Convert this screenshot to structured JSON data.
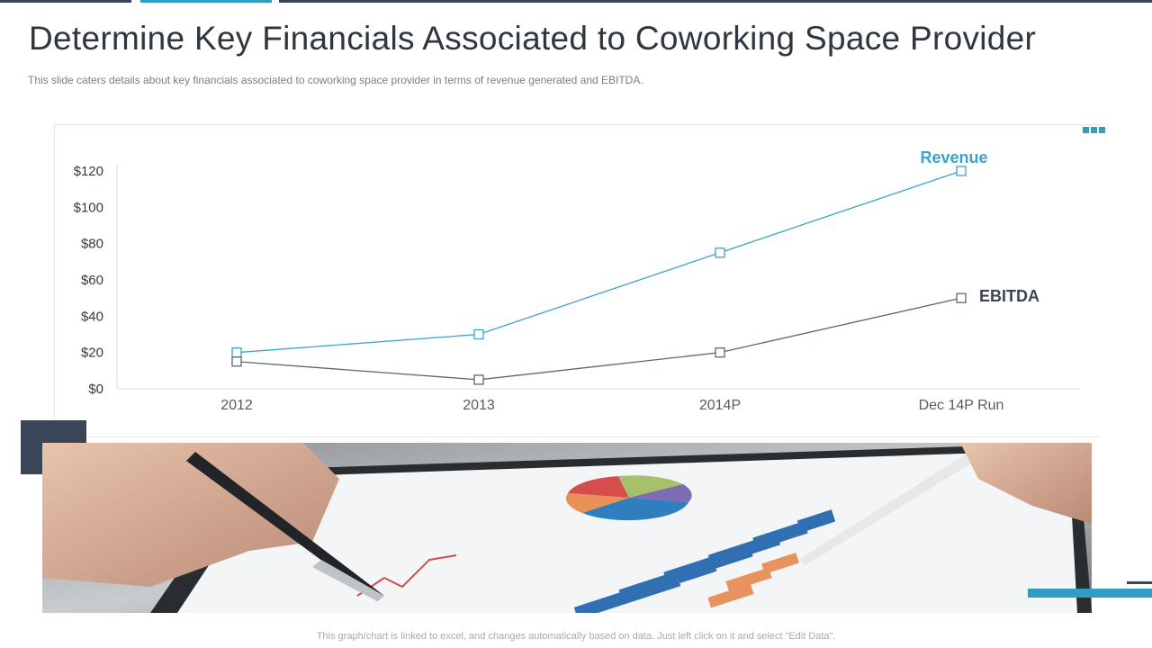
{
  "slide": {
    "title": "Determine Key Financials Associated to Coworking Space Provider",
    "subtitle": "This slide caters details about key financials associated to coworking space provider  in terms of revenue  generated  and EBITDA.",
    "footnote": "This graph/chart is linked to excel,  and changes automatically based on data. Just left click on it and select “Edit Data”."
  },
  "colors": {
    "accent": "#2f9dc4",
    "dark": "#3b4558",
    "revenue": "#3ba3c9",
    "ebitda": "#5a6873",
    "text": "#2e3640"
  },
  "photo": {
    "icon": "tablet-chart-photo-icon"
  },
  "chart_data": {
    "type": "line",
    "categories": [
      "2012",
      "2013",
      "2014P",
      "Dec 14P Run"
    ],
    "series": [
      {
        "name": "Revenue",
        "values": [
          20,
          30,
          75,
          120
        ],
        "color": "#3ba3c9",
        "marker": "square"
      },
      {
        "name": "EBITDA",
        "values": [
          15,
          5,
          20,
          50
        ],
        "color": "#5a6873",
        "marker": "square"
      }
    ],
    "yticks": [
      "$0",
      "$20",
      "$40",
      "$60",
      "$80",
      "$100",
      "$120"
    ],
    "ylim": [
      0,
      120
    ],
    "grid": false,
    "legend": "series labels at line ends"
  }
}
